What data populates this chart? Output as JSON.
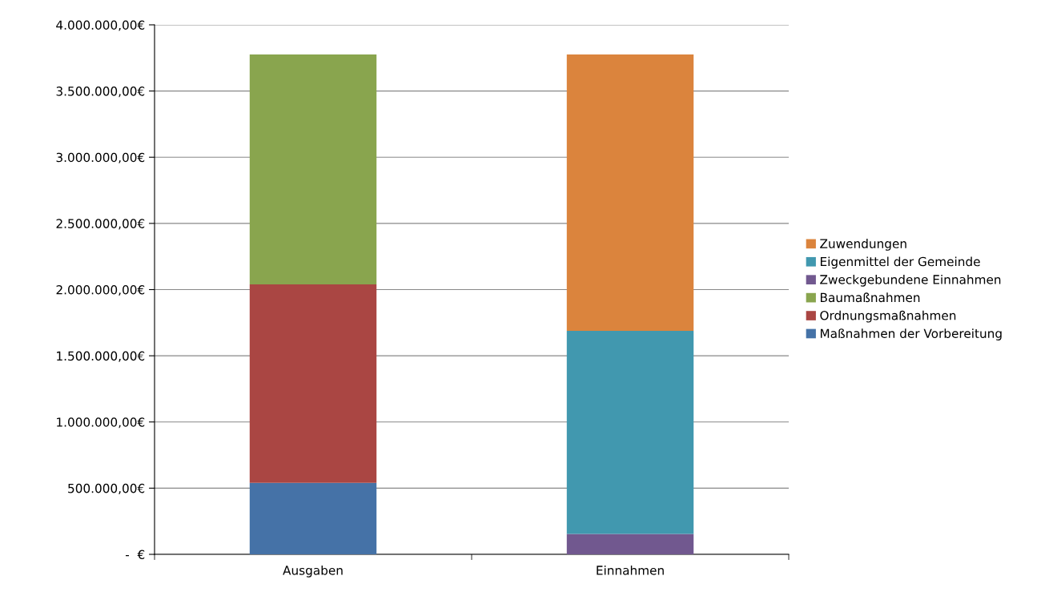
{
  "chart_data": {
    "type": "bar",
    "stacked": true,
    "categories": [
      "Ausgaben",
      "Einnahmen"
    ],
    "series": [
      {
        "name": "Maßnahmen der Vorbereitung",
        "color": "#4572a7",
        "values": [
          540000,
          null
        ]
      },
      {
        "name": "Ordnungsmaßnahmen",
        "color": "#aa4643",
        "values": [
          1500000,
          null
        ]
      },
      {
        "name": "Baumaßnahmen",
        "color": "#89a54e",
        "values": [
          1736000,
          null
        ]
      },
      {
        "name": "Zweckgebundene Einnahmen",
        "color": "#71588f",
        "values": [
          null,
          155000
        ]
      },
      {
        "name": "Eigenmittel der Gemeinde",
        "color": "#4198af",
        "values": [
          null,
          1533000
        ]
      },
      {
        "name": "Zuwendungen",
        "color": "#db843d",
        "values": [
          null,
          2088000
        ]
      }
    ],
    "ylim": [
      0,
      4000000
    ],
    "yticks": [
      {
        "value": 0,
        "label": "-  €"
      },
      {
        "value": 500000,
        "label": "500.000,00€"
      },
      {
        "value": 1000000,
        "label": "1.000.000,00€"
      },
      {
        "value": 1500000,
        "label": "1.500.000,00€"
      },
      {
        "value": 2000000,
        "label": "2.000.000,00€"
      },
      {
        "value": 2500000,
        "label": "2.500.000,00€"
      },
      {
        "value": 3000000,
        "label": "3.000.000,00€"
      },
      {
        "value": 3500000,
        "label": "3.500.000,00€"
      },
      {
        "value": 4000000,
        "label": "4.000.000,00€"
      }
    ],
    "grid": "y",
    "legend": "right"
  }
}
